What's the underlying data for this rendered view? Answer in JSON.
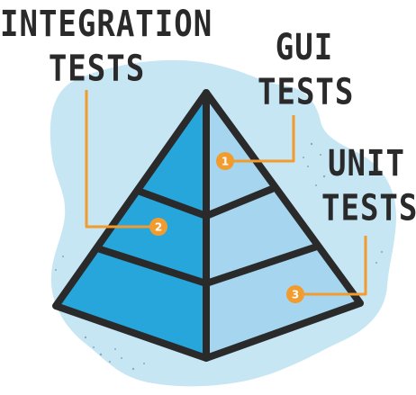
{
  "labels": {
    "integration": [
      "INTEGRATION",
      "TESTS"
    ],
    "gui": [
      "GUI",
      "TESTS"
    ],
    "unit": [
      "UNIT",
      "TESTS"
    ]
  },
  "markers": [
    "1",
    "2",
    "3"
  ],
  "colors": {
    "background_blob": "#c6e6f4",
    "pyramid_dark": "#27a6dc",
    "pyramid_light": "#a6d6ef",
    "outline": "#2a2a2a",
    "callout": "#f29b2e",
    "text": "#2a2a2a"
  }
}
